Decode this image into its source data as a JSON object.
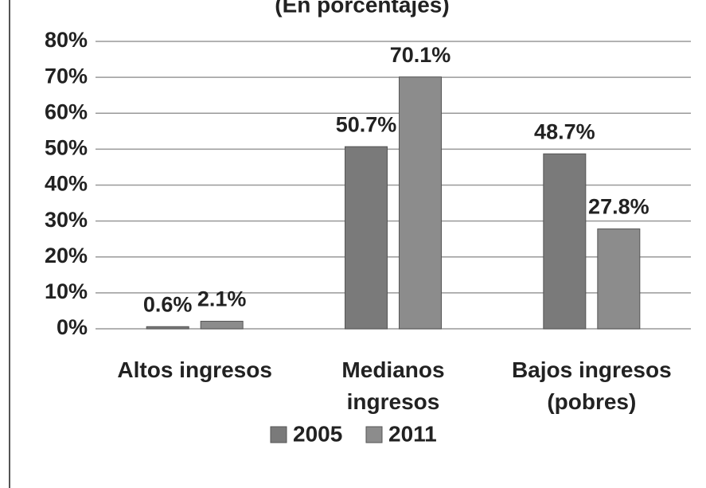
{
  "chart_data": {
    "type": "bar",
    "subtitle": "(En porcentajes)",
    "categories": [
      "Altos ingresos",
      "Medianos ingresos",
      "Bajos ingresos (pobres)"
    ],
    "series": [
      {
        "name": "2005",
        "color": "#7a7a7a",
        "values": [
          0.6,
          50.7,
          48.7
        ],
        "value_labels": [
          "0.6%",
          "50.7%",
          "48.7%"
        ]
      },
      {
        "name": "2011",
        "color": "#8c8c8c",
        "values": [
          2.1,
          70.1,
          27.8
        ],
        "value_labels": [
          "2.1%",
          "70.1%",
          "27.8%"
        ]
      }
    ],
    "ylim": [
      0,
      80
    ],
    "yticks": [
      {
        "value": 0,
        "label": "0%"
      },
      {
        "value": 10,
        "label": "10%"
      },
      {
        "value": 20,
        "label": "20%"
      },
      {
        "value": 30,
        "label": "30%"
      },
      {
        "value": 40,
        "label": "40%"
      },
      {
        "value": 50,
        "label": "50%"
      },
      {
        "value": 60,
        "label": "60%"
      },
      {
        "value": 70,
        "label": "70%"
      },
      {
        "value": 80,
        "label": "80%"
      }
    ],
    "grid": true,
    "legend": "bottom"
  }
}
